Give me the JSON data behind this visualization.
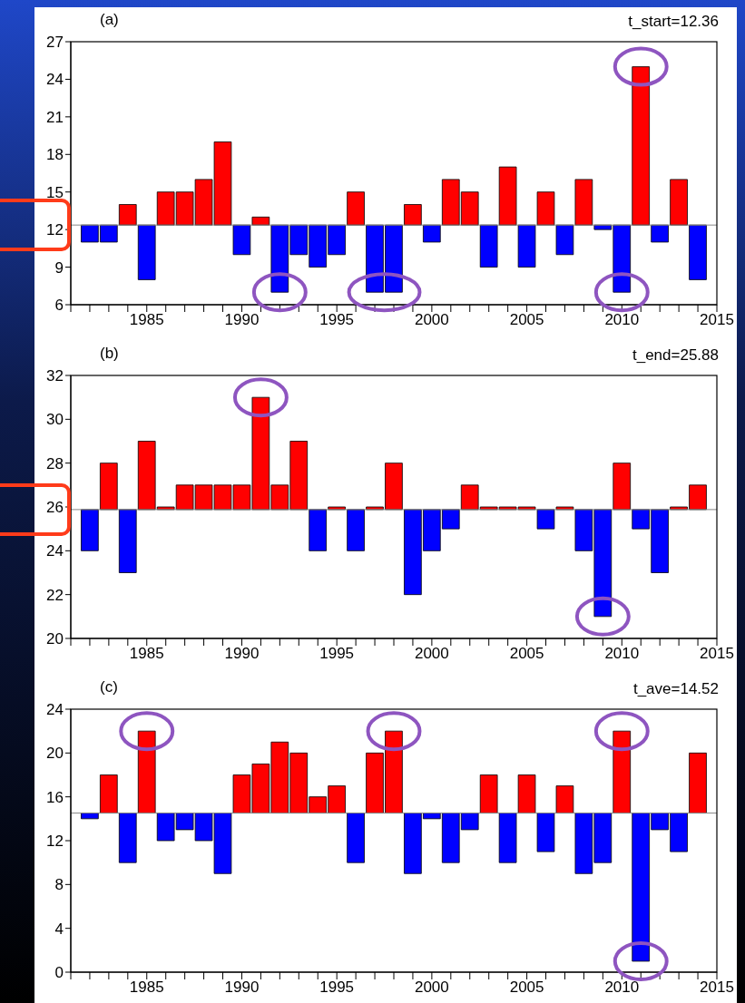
{
  "chart_data": [
    {
      "type": "bar",
      "title": "(a)",
      "x": [
        1982,
        1983,
        1984,
        1985,
        1986,
        1987,
        1988,
        1989,
        1990,
        1991,
        1992,
        1993,
        1994,
        1995,
        1996,
        1997,
        1998,
        1999,
        2000,
        2001,
        2002,
        2003,
        2004,
        2005,
        2006,
        2007,
        2008,
        2009,
        2010,
        2011,
        2012,
        2013,
        2014
      ],
      "values": [
        -1.36,
        -1.36,
        1.64,
        -4.36,
        2.64,
        2.64,
        3.64,
        6.64,
        -2.36,
        0.64,
        -5.36,
        -2.36,
        -3.36,
        -2.36,
        2.64,
        -5.36,
        -5.36,
        1.64,
        -1.36,
        3.64,
        2.64,
        -3.36,
        4.64,
        -3.36,
        2.64,
        -2.36,
        3.64,
        -0.36,
        -5.36,
        12.64,
        -1.36,
        3.64,
        -4.36
      ],
      "base": [
        12.36,
        12.36,
        12.36,
        12.36,
        12.36,
        12.36,
        12.36,
        12.36,
        12.36,
        12.36,
        12.36,
        12.36,
        12.36,
        12.36,
        12.36,
        12.36,
        12.36,
        12.36,
        12.36,
        12.36,
        12.36,
        12.36,
        12.36,
        12.36,
        12.36,
        12.36,
        12.36,
        12.36,
        12.36,
        12.36,
        12.36,
        12.36,
        12.36
      ],
      "colors": [
        "#0000ff",
        "#0000ff",
        "#ff0000",
        "#0000ff",
        "#ff0000",
        "#ff0000",
        "#ff0000",
        "#ff0000",
        "#0000ff",
        "#ff0000",
        "#0000ff",
        "#0000ff",
        "#0000ff",
        "#0000ff",
        "#ff0000",
        "#0000ff",
        "#0000ff",
        "#ff0000",
        "#0000ff",
        "#ff0000",
        "#ff0000",
        "#0000ff",
        "#ff0000",
        "#0000ff",
        "#ff0000",
        "#0000ff",
        "#ff0000",
        "#0000ff",
        "#0000ff",
        "#ff0000",
        "#0000ff",
        "#ff0000",
        "#0000ff"
      ],
      "xlim": [
        1981,
        2015
      ],
      "xticks": [
        {
          "value": 1981,
          "label": null
        },
        {
          "value": 1982,
          "label": null
        },
        {
          "value": 1983,
          "label": null
        },
        {
          "value": 1984,
          "label": null
        },
        1985,
        {
          "value": 1986,
          "label": null
        },
        {
          "value": 1987,
          "label": null
        },
        {
          "value": 1988,
          "label": null
        },
        {
          "value": 1989,
          "label": null
        },
        1990,
        {
          "value": 1991,
          "label": null
        },
        {
          "value": 1992,
          "label": null
        },
        {
          "value": 1993,
          "label": null
        },
        {
          "value": 1994,
          "label": null
        },
        1995,
        {
          "value": 1996,
          "label": null
        },
        {
          "value": 1997,
          "label": null
        },
        {
          "value": 1998,
          "label": null
        },
        {
          "value": 1999,
          "label": null
        },
        2000,
        {
          "value": 2001,
          "label": null
        },
        {
          "value": 2002,
          "label": null
        },
        {
          "value": 2003,
          "label": null
        },
        {
          "value": 2004,
          "label": null
        },
        2005,
        {
          "value": 2006,
          "label": null
        },
        {
          "value": 2007,
          "label": null
        },
        {
          "value": 2008,
          "label": null
        },
        {
          "value": 2009,
          "label": null
        },
        2010,
        {
          "value": 2011,
          "label": null
        },
        {
          "value": 2012,
          "label": null
        },
        {
          "value": 2013,
          "label": null
        },
        {
          "value": 2014,
          "label": null
        },
        2015
      ],
      "ylim": [
        6,
        27
      ],
      "yticks": [
        6,
        9,
        12,
        15,
        18,
        21,
        24,
        27
      ],
      "ref_lines": [
        {
          "axis": "y",
          "value": 12.36
        }
      ],
      "annotations": [
        "t_start=12.36"
      ]
    },
    {
      "type": "bar",
      "title": "(b)",
      "x": [
        1982,
        1983,
        1984,
        1985,
        1986,
        1987,
        1988,
        1989,
        1990,
        1991,
        1992,
        1993,
        1994,
        1995,
        1996,
        1997,
        1998,
        1999,
        2000,
        2001,
        2002,
        2003,
        2004,
        2005,
        2006,
        2007,
        2008,
        2009,
        2010,
        2011,
        2012,
        2013,
        2014
      ],
      "values": [
        -1.88,
        2.12,
        -2.88,
        3.12,
        0.12,
        1.12,
        1.12,
        1.12,
        1.12,
        5.12,
        1.12,
        3.12,
        -1.88,
        0.12,
        -1.88,
        0.12,
        2.12,
        -3.88,
        -1.88,
        -0.88,
        1.12,
        0.12,
        0.12,
        0.12,
        -0.88,
        0.12,
        -1.88,
        -4.88,
        2.12,
        -0.88,
        -2.88,
        0.12,
        1.12
      ],
      "base": [
        25.88,
        25.88,
        25.88,
        25.88,
        25.88,
        25.88,
        25.88,
        25.88,
        25.88,
        25.88,
        25.88,
        25.88,
        25.88,
        25.88,
        25.88,
        25.88,
        25.88,
        25.88,
        25.88,
        25.88,
        25.88,
        25.88,
        25.88,
        25.88,
        25.88,
        25.88,
        25.88,
        25.88,
        25.88,
        25.88,
        25.88,
        25.88,
        25.88
      ],
      "colors": [
        "#0000ff",
        "#ff0000",
        "#0000ff",
        "#ff0000",
        "#ff0000",
        "#ff0000",
        "#ff0000",
        "#ff0000",
        "#ff0000",
        "#ff0000",
        "#ff0000",
        "#ff0000",
        "#0000ff",
        "#ff0000",
        "#0000ff",
        "#ff0000",
        "#ff0000",
        "#0000ff",
        "#0000ff",
        "#0000ff",
        "#ff0000",
        "#ff0000",
        "#ff0000",
        "#ff0000",
        "#0000ff",
        "#ff0000",
        "#0000ff",
        "#0000ff",
        "#ff0000",
        "#0000ff",
        "#0000ff",
        "#ff0000",
        "#ff0000"
      ],
      "xlim": [
        1981,
        2015
      ],
      "xticks": [
        {
          "value": 1981,
          "label": null
        },
        {
          "value": 1982,
          "label": null
        },
        {
          "value": 1983,
          "label": null
        },
        {
          "value": 1984,
          "label": null
        },
        1985,
        {
          "value": 1986,
          "label": null
        },
        {
          "value": 1987,
          "label": null
        },
        {
          "value": 1988,
          "label": null
        },
        {
          "value": 1989,
          "label": null
        },
        1990,
        {
          "value": 1991,
          "label": null
        },
        {
          "value": 1992,
          "label": null
        },
        {
          "value": 1993,
          "label": null
        },
        {
          "value": 1994,
          "label": null
        },
        1995,
        {
          "value": 1996,
          "label": null
        },
        {
          "value": 1997,
          "label": null
        },
        {
          "value": 1998,
          "label": null
        },
        {
          "value": 1999,
          "label": null
        },
        2000,
        {
          "value": 2001,
          "label": null
        },
        {
          "value": 2002,
          "label": null
        },
        {
          "value": 2003,
          "label": null
        },
        {
          "value": 2004,
          "label": null
        },
        2005,
        {
          "value": 2006,
          "label": null
        },
        {
          "value": 2007,
          "label": null
        },
        {
          "value": 2008,
          "label": null
        },
        {
          "value": 2009,
          "label": null
        },
        2010,
        {
          "value": 2011,
          "label": null
        },
        {
          "value": 2012,
          "label": null
        },
        {
          "value": 2013,
          "label": null
        },
        {
          "value": 2014,
          "label": null
        },
        2015
      ],
      "ylim": [
        20,
        32
      ],
      "yticks": [
        20,
        22,
        24,
        26,
        28,
        30,
        32
      ],
      "ref_lines": [
        {
          "axis": "y",
          "value": 25.88
        }
      ],
      "annotations": [
        "t_end=25.88"
      ]
    },
    {
      "type": "bar",
      "title": "(c)",
      "x": [
        1982,
        1983,
        1984,
        1985,
        1986,
        1987,
        1988,
        1989,
        1990,
        1991,
        1992,
        1993,
        1994,
        1995,
        1996,
        1997,
        1998,
        1999,
        2000,
        2001,
        2002,
        2003,
        2004,
        2005,
        2006,
        2007,
        2008,
        2009,
        2010,
        2011,
        2012,
        2013,
        2014
      ],
      "values": [
        -0.52,
        3.48,
        -4.52,
        7.48,
        -2.52,
        -1.52,
        -2.52,
        -5.52,
        3.48,
        4.48,
        6.48,
        5.48,
        1.48,
        2.48,
        -4.52,
        5.48,
        7.48,
        -5.52,
        -0.52,
        -4.52,
        -1.52,
        3.48,
        -4.52,
        3.48,
        -3.52,
        2.48,
        -5.52,
        -4.52,
        7.48,
        -13.52,
        -1.52,
        -3.52,
        5.48
      ],
      "base": [
        14.52,
        14.52,
        14.52,
        14.52,
        14.52,
        14.52,
        14.52,
        14.52,
        14.52,
        14.52,
        14.52,
        14.52,
        14.52,
        14.52,
        14.52,
        14.52,
        14.52,
        14.52,
        14.52,
        14.52,
        14.52,
        14.52,
        14.52,
        14.52,
        14.52,
        14.52,
        14.52,
        14.52,
        14.52,
        14.52,
        14.52,
        14.52,
        14.52
      ],
      "colors": [
        "#0000ff",
        "#ff0000",
        "#0000ff",
        "#ff0000",
        "#0000ff",
        "#0000ff",
        "#0000ff",
        "#0000ff",
        "#ff0000",
        "#ff0000",
        "#ff0000",
        "#ff0000",
        "#ff0000",
        "#ff0000",
        "#0000ff",
        "#ff0000",
        "#ff0000",
        "#0000ff",
        "#0000ff",
        "#0000ff",
        "#0000ff",
        "#ff0000",
        "#0000ff",
        "#ff0000",
        "#0000ff",
        "#ff0000",
        "#0000ff",
        "#0000ff",
        "#ff0000",
        "#0000ff",
        "#0000ff",
        "#0000ff",
        "#ff0000"
      ],
      "xlim": [
        1981,
        2015
      ],
      "xticks": [
        {
          "value": 1981,
          "label": null
        },
        {
          "value": 1982,
          "label": null
        },
        {
          "value": 1983,
          "label": null
        },
        {
          "value": 1984,
          "label": null
        },
        1985,
        {
          "value": 1986,
          "label": null
        },
        {
          "value": 1987,
          "label": null
        },
        {
          "value": 1988,
          "label": null
        },
        {
          "value": 1989,
          "label": null
        },
        1990,
        {
          "value": 1991,
          "label": null
        },
        {
          "value": 1992,
          "label": null
        },
        {
          "value": 1993,
          "label": null
        },
        {
          "value": 1994,
          "label": null
        },
        1995,
        {
          "value": 1996,
          "label": null
        },
        {
          "value": 1997,
          "label": null
        },
        {
          "value": 1998,
          "label": null
        },
        {
          "value": 1999,
          "label": null
        },
        2000,
        {
          "value": 2001,
          "label": null
        },
        {
          "value": 2002,
          "label": null
        },
        {
          "value": 2003,
          "label": null
        },
        {
          "value": 2004,
          "label": null
        },
        2005,
        {
          "value": 2006,
          "label": null
        },
        {
          "value": 2007,
          "label": null
        },
        {
          "value": 2008,
          "label": null
        },
        {
          "value": 2009,
          "label": null
        },
        2010,
        {
          "value": 2011,
          "label": null
        },
        {
          "value": 2012,
          "label": null
        },
        {
          "value": 2013,
          "label": null
        },
        {
          "value": 2014,
          "label": null
        },
        2015
      ],
      "ylim": [
        0,
        24
      ],
      "yticks": [
        0,
        4,
        8,
        12,
        16,
        20,
        24
      ],
      "ref_lines": [
        {
          "axis": "y",
          "value": 14.52
        }
      ],
      "annotations": [
        "t_ave=14.52"
      ]
    }
  ]
}
